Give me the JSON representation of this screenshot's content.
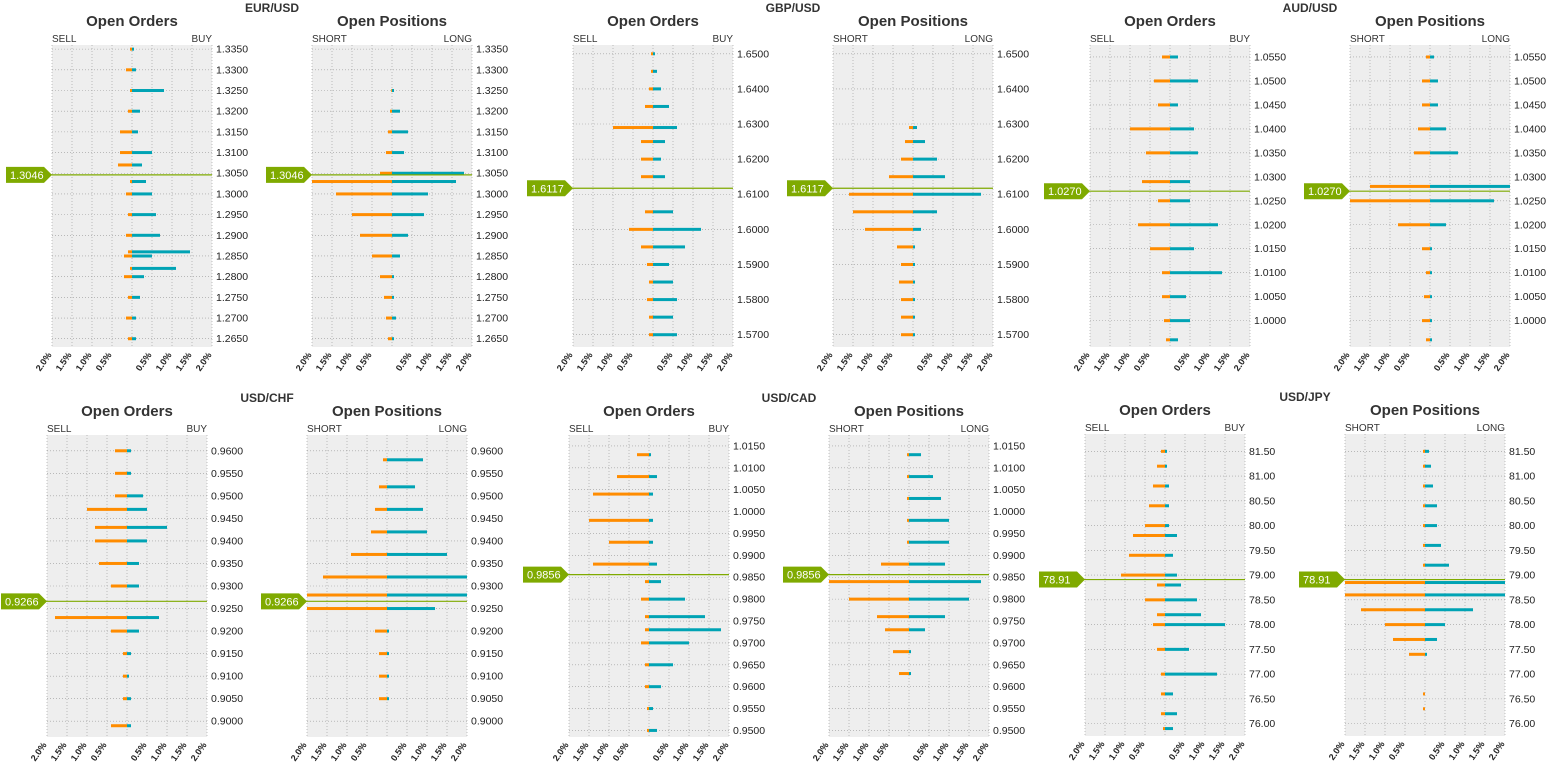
{
  "colors": {
    "sell": "#FF8C00",
    "buy": "#00A3B4",
    "panel_bg": "#EEEEEE",
    "grid": "#999999",
    "price_line": "#7FAA00",
    "price_tag": "#7FAA00"
  },
  "labels": {
    "orders_title": "Open Orders",
    "positions_title": "Open Positions",
    "sell": "SELL",
    "buy": "BUY",
    "short": "SHORT",
    "long": "LONG"
  },
  "x_ticks": [
    "2.0%",
    "1.5%",
    "1.0%",
    "0.5%",
    "",
    "0.5%",
    "1.0%",
    "1.5%",
    "2.0%"
  ],
  "chart_data": [
    {
      "type": "bar",
      "pair": "EUR/USD",
      "current_price": "1.3046",
      "current_value": 1.3046,
      "ylim": [
        1.263,
        1.336
      ],
      "xlim": [
        -2.0,
        2.0
      ],
      "y_ticks": [
        "1.3350",
        "1.3300",
        "1.3250",
        "1.3200",
        "1.3150",
        "1.3100",
        "1.3050",
        "1.3000",
        "1.2950",
        "1.2900",
        "1.2850",
        "1.2800",
        "1.2750",
        "1.2700",
        "1.2650"
      ],
      "orders": [
        [
          1.265,
          0.1,
          0.1
        ],
        [
          1.27,
          0.15,
          0.1
        ],
        [
          1.275,
          0.1,
          0.2
        ],
        [
          1.28,
          0.2,
          0.3
        ],
        [
          1.282,
          0.05,
          1.1
        ],
        [
          1.285,
          0.2,
          0.5
        ],
        [
          1.286,
          0.1,
          1.45
        ],
        [
          1.29,
          0.15,
          0.7
        ],
        [
          1.295,
          0.1,
          0.6
        ],
        [
          1.3,
          0.15,
          0.5
        ],
        [
          1.303,
          0.05,
          0.35
        ],
        [
          1.307,
          0.35,
          0.25
        ],
        [
          1.31,
          0.3,
          0.5
        ],
        [
          1.315,
          0.3,
          0.15
        ],
        [
          1.32,
          0.1,
          0.2
        ],
        [
          1.325,
          0.05,
          0.8
        ],
        [
          1.33,
          0.15,
          0.1
        ],
        [
          1.335,
          0.05,
          0.05
        ]
      ],
      "positions": [
        [
          1.265,
          0.1,
          0.05
        ],
        [
          1.27,
          0.15,
          0.1
        ],
        [
          1.275,
          0.2,
          0.05
        ],
        [
          1.28,
          0.3,
          0.05
        ],
        [
          1.285,
          0.5,
          0.2
        ],
        [
          1.29,
          0.8,
          0.4
        ],
        [
          1.295,
          1.0,
          0.8
        ],
        [
          1.3,
          1.4,
          0.9
        ],
        [
          1.303,
          2.0,
          1.6
        ],
        [
          1.305,
          0.3,
          1.8
        ],
        [
          1.31,
          0.15,
          0.3
        ],
        [
          1.315,
          0.1,
          0.4
        ],
        [
          1.32,
          0.05,
          0.2
        ],
        [
          1.325,
          0.02,
          0.05
        ]
      ]
    },
    {
      "type": "bar",
      "pair": "GBP/USD",
      "current_price": "1.6117",
      "current_value": 1.6117,
      "ylim": [
        1.5665,
        1.6525
      ],
      "xlim": [
        -2.0,
        2.0
      ],
      "y_ticks": [
        "1.6500",
        "1.6400",
        "1.6300",
        "1.6200",
        "1.6100",
        "1.6000",
        "1.5900",
        "1.5800",
        "1.5700"
      ],
      "orders": [
        [
          1.57,
          0.1,
          0.6
        ],
        [
          1.575,
          0.1,
          0.5
        ],
        [
          1.58,
          0.15,
          0.6
        ],
        [
          1.585,
          0.1,
          0.5
        ],
        [
          1.59,
          0.15,
          0.4
        ],
        [
          1.595,
          0.3,
          0.8
        ],
        [
          1.6,
          0.6,
          1.2
        ],
        [
          1.605,
          0.2,
          0.5
        ],
        [
          1.615,
          0.3,
          0.3
        ],
        [
          1.62,
          0.3,
          0.2
        ],
        [
          1.625,
          0.3,
          0.3
        ],
        [
          1.629,
          1.0,
          0.6
        ],
        [
          1.635,
          0.2,
          0.4
        ],
        [
          1.64,
          0.1,
          0.2
        ],
        [
          1.645,
          0.05,
          0.1
        ],
        [
          1.65,
          0.05,
          0.05
        ]
      ],
      "positions": [
        [
          1.57,
          0.3,
          0.05
        ],
        [
          1.575,
          0.3,
          0.05
        ],
        [
          1.58,
          0.3,
          0.05
        ],
        [
          1.585,
          0.35,
          0.05
        ],
        [
          1.59,
          0.3,
          0.05
        ],
        [
          1.595,
          0.4,
          0.05
        ],
        [
          1.6,
          1.2,
          0.2
        ],
        [
          1.605,
          1.5,
          0.6
        ],
        [
          1.61,
          1.6,
          1.7
        ],
        [
          1.615,
          0.6,
          0.8
        ],
        [
          1.62,
          0.3,
          0.6
        ],
        [
          1.625,
          0.2,
          0.3
        ],
        [
          1.629,
          0.1,
          0.1
        ]
      ]
    },
    {
      "type": "bar",
      "pair": "AUD/USD",
      "current_price": "1.0270",
      "current_value": 1.027,
      "ylim": [
        0.9945,
        1.0575
      ],
      "xlim": [
        -2.0,
        2.0
      ],
      "y_ticks": [
        "1.0550",
        "1.0500",
        "1.0450",
        "1.0400",
        "1.0350",
        "1.0300",
        "1.0250",
        "1.0200",
        "1.0150",
        "1.0100",
        "1.0050",
        "1.0000"
      ],
      "orders": [
        [
          0.996,
          0.1,
          0.2
        ],
        [
          1.0,
          0.15,
          0.5
        ],
        [
          1.005,
          0.2,
          0.4
        ],
        [
          1.01,
          0.2,
          1.3
        ],
        [
          1.015,
          0.5,
          0.6
        ],
        [
          1.02,
          0.8,
          1.2
        ],
        [
          1.025,
          0.3,
          0.5
        ],
        [
          1.029,
          0.7,
          0.5
        ],
        [
          1.035,
          0.6,
          0.7
        ],
        [
          1.04,
          1.0,
          0.6
        ],
        [
          1.045,
          0.3,
          0.2
        ],
        [
          1.05,
          0.4,
          0.7
        ],
        [
          1.055,
          0.2,
          0.2
        ]
      ],
      "positions": [
        [
          0.996,
          0.1,
          0.05
        ],
        [
          1.0,
          0.2,
          0.05
        ],
        [
          1.005,
          0.15,
          0.05
        ],
        [
          1.01,
          0.1,
          0.05
        ],
        [
          1.015,
          0.2,
          0.05
        ],
        [
          1.02,
          0.8,
          0.4
        ],
        [
          1.025,
          2.0,
          1.6
        ],
        [
          1.028,
          1.5,
          2.0
        ],
        [
          1.035,
          0.4,
          0.7
        ],
        [
          1.04,
          0.3,
          0.4
        ],
        [
          1.045,
          0.2,
          0.2
        ],
        [
          1.05,
          0.2,
          0.2
        ],
        [
          1.055,
          0.1,
          0.1
        ]
      ]
    },
    {
      "type": "bar",
      "pair": "USD/CHF",
      "current_price": "0.9266",
      "current_value": 0.9266,
      "ylim": [
        0.8965,
        0.9635
      ],
      "xlim": [
        -2.0,
        2.0
      ],
      "y_ticks": [
        "0.9600",
        "0.9550",
        "0.9500",
        "0.9450",
        "0.9400",
        "0.9350",
        "0.9300",
        "0.9250",
        "0.9200",
        "0.9150",
        "0.9100",
        "0.9050",
        "0.9000"
      ],
      "orders": [
        [
          0.899,
          0.4,
          0.1
        ],
        [
          0.905,
          0.1,
          0.1
        ],
        [
          0.91,
          0.1,
          0.05
        ],
        [
          0.915,
          0.1,
          0.1
        ],
        [
          0.92,
          0.4,
          0.3
        ],
        [
          0.923,
          1.8,
          0.8
        ],
        [
          0.93,
          0.4,
          0.3
        ],
        [
          0.935,
          0.7,
          0.3
        ],
        [
          0.94,
          0.8,
          0.5
        ],
        [
          0.943,
          0.8,
          1.0
        ],
        [
          0.947,
          1.0,
          0.5
        ],
        [
          0.95,
          0.3,
          0.4
        ],
        [
          0.955,
          0.3,
          0.1
        ],
        [
          0.96,
          0.3,
          0.1
        ]
      ],
      "positions": [
        [
          0.905,
          0.2,
          0.05
        ],
        [
          0.91,
          0.2,
          0.05
        ],
        [
          0.915,
          0.2,
          0.05
        ],
        [
          0.92,
          0.3,
          0.05
        ],
        [
          0.925,
          2.0,
          1.2
        ],
        [
          0.928,
          2.0,
          2.0
        ],
        [
          0.932,
          1.6,
          2.0
        ],
        [
          0.937,
          0.9,
          1.5
        ],
        [
          0.942,
          0.4,
          1.0
        ],
        [
          0.947,
          0.3,
          0.9
        ],
        [
          0.952,
          0.2,
          0.7
        ],
        [
          0.958,
          0.1,
          0.9
        ]
      ]
    },
    {
      "type": "bar",
      "pair": "USD/CAD",
      "current_price": "0.9856",
      "current_value": 0.9856,
      "ylim": [
        0.9485,
        1.0175
      ],
      "xlim": [
        -2.0,
        2.0
      ],
      "y_ticks": [
        "1.0150",
        "1.0100",
        "1.0050",
        "1.0000",
        "0.9950",
        "0.9900",
        "0.9850",
        "0.9800",
        "0.9750",
        "0.9700",
        "0.9650",
        "0.9600",
        "0.9550",
        "0.9500"
      ],
      "orders": [
        [
          0.95,
          0.05,
          0.2
        ],
        [
          0.955,
          0.05,
          0.1
        ],
        [
          0.96,
          0.1,
          0.3
        ],
        [
          0.965,
          0.1,
          0.6
        ],
        [
          0.97,
          0.2,
          1.0
        ],
        [
          0.973,
          0.1,
          1.8
        ],
        [
          0.976,
          0.1,
          1.4
        ],
        [
          0.98,
          0.2,
          0.9
        ],
        [
          0.984,
          0.1,
          0.3
        ],
        [
          0.988,
          1.4,
          0.2
        ],
        [
          0.993,
          1.0,
          0.1
        ],
        [
          0.998,
          1.5,
          0.1
        ],
        [
          1.004,
          1.4,
          0.1
        ],
        [
          1.008,
          0.8,
          0.2
        ],
        [
          1.013,
          0.3,
          0.05
        ]
      ],
      "positions": [
        [
          0.963,
          0.25,
          0.05
        ],
        [
          0.968,
          0.4,
          0.05
        ],
        [
          0.973,
          0.6,
          0.4
        ],
        [
          0.976,
          0.8,
          0.9
        ],
        [
          0.98,
          1.5,
          1.5
        ],
        [
          0.984,
          2.0,
          1.8
        ],
        [
          0.988,
          0.7,
          0.9
        ],
        [
          0.993,
          0.05,
          1.0
        ],
        [
          0.998,
          0.05,
          1.0
        ],
        [
          1.003,
          0.05,
          0.8
        ],
        [
          1.008,
          0.05,
          0.6
        ],
        [
          1.013,
          0.05,
          0.3
        ]
      ]
    },
    {
      "type": "bar",
      "pair": "USD/JPY",
      "current_price": "78.91",
      "current_value": 78.91,
      "ylim": [
        75.75,
        81.85
      ],
      "xlim": [
        -2.0,
        2.0
      ],
      "y_ticks": [
        "81.50",
        "81.00",
        "80.50",
        "80.00",
        "79.50",
        "79.00",
        "78.50",
        "78.00",
        "77.50",
        "77.00",
        "76.50",
        "76.00"
      ],
      "orders": [
        [
          75.9,
          0.05,
          0.2
        ],
        [
          76.2,
          0.1,
          0.3
        ],
        [
          76.6,
          0.1,
          0.2
        ],
        [
          77.0,
          0.1,
          1.3
        ],
        [
          77.5,
          0.2,
          0.6
        ],
        [
          78.0,
          0.3,
          1.5
        ],
        [
          78.2,
          0.2,
          0.9
        ],
        [
          78.5,
          0.5,
          0.8
        ],
        [
          78.8,
          0.2,
          0.4
        ],
        [
          79.0,
          1.1,
          0.3
        ],
        [
          79.4,
          0.9,
          0.2
        ],
        [
          79.8,
          0.8,
          0.3
        ],
        [
          80.0,
          0.5,
          0.1
        ],
        [
          80.4,
          0.4,
          0.1
        ],
        [
          80.8,
          0.3,
          0.1
        ],
        [
          81.2,
          0.2,
          0.05
        ],
        [
          81.5,
          0.1,
          0.05
        ]
      ],
      "positions": [
        [
          76.3,
          0.05,
          0.0
        ],
        [
          76.6,
          0.05,
          0.0
        ],
        [
          77.4,
          0.4,
          0.05
        ],
        [
          77.7,
          0.8,
          0.3
        ],
        [
          78.0,
          1.0,
          0.5
        ],
        [
          78.3,
          1.6,
          1.2
        ],
        [
          78.6,
          2.0,
          2.0
        ],
        [
          78.85,
          2.0,
          2.0
        ],
        [
          79.2,
          0.05,
          0.6
        ],
        [
          79.6,
          0.05,
          0.4
        ],
        [
          80.0,
          0.05,
          0.3
        ],
        [
          80.4,
          0.05,
          0.3
        ],
        [
          80.8,
          0.05,
          0.2
        ],
        [
          81.2,
          0.05,
          0.15
        ],
        [
          81.5,
          0.05,
          0.1
        ]
      ]
    }
  ]
}
